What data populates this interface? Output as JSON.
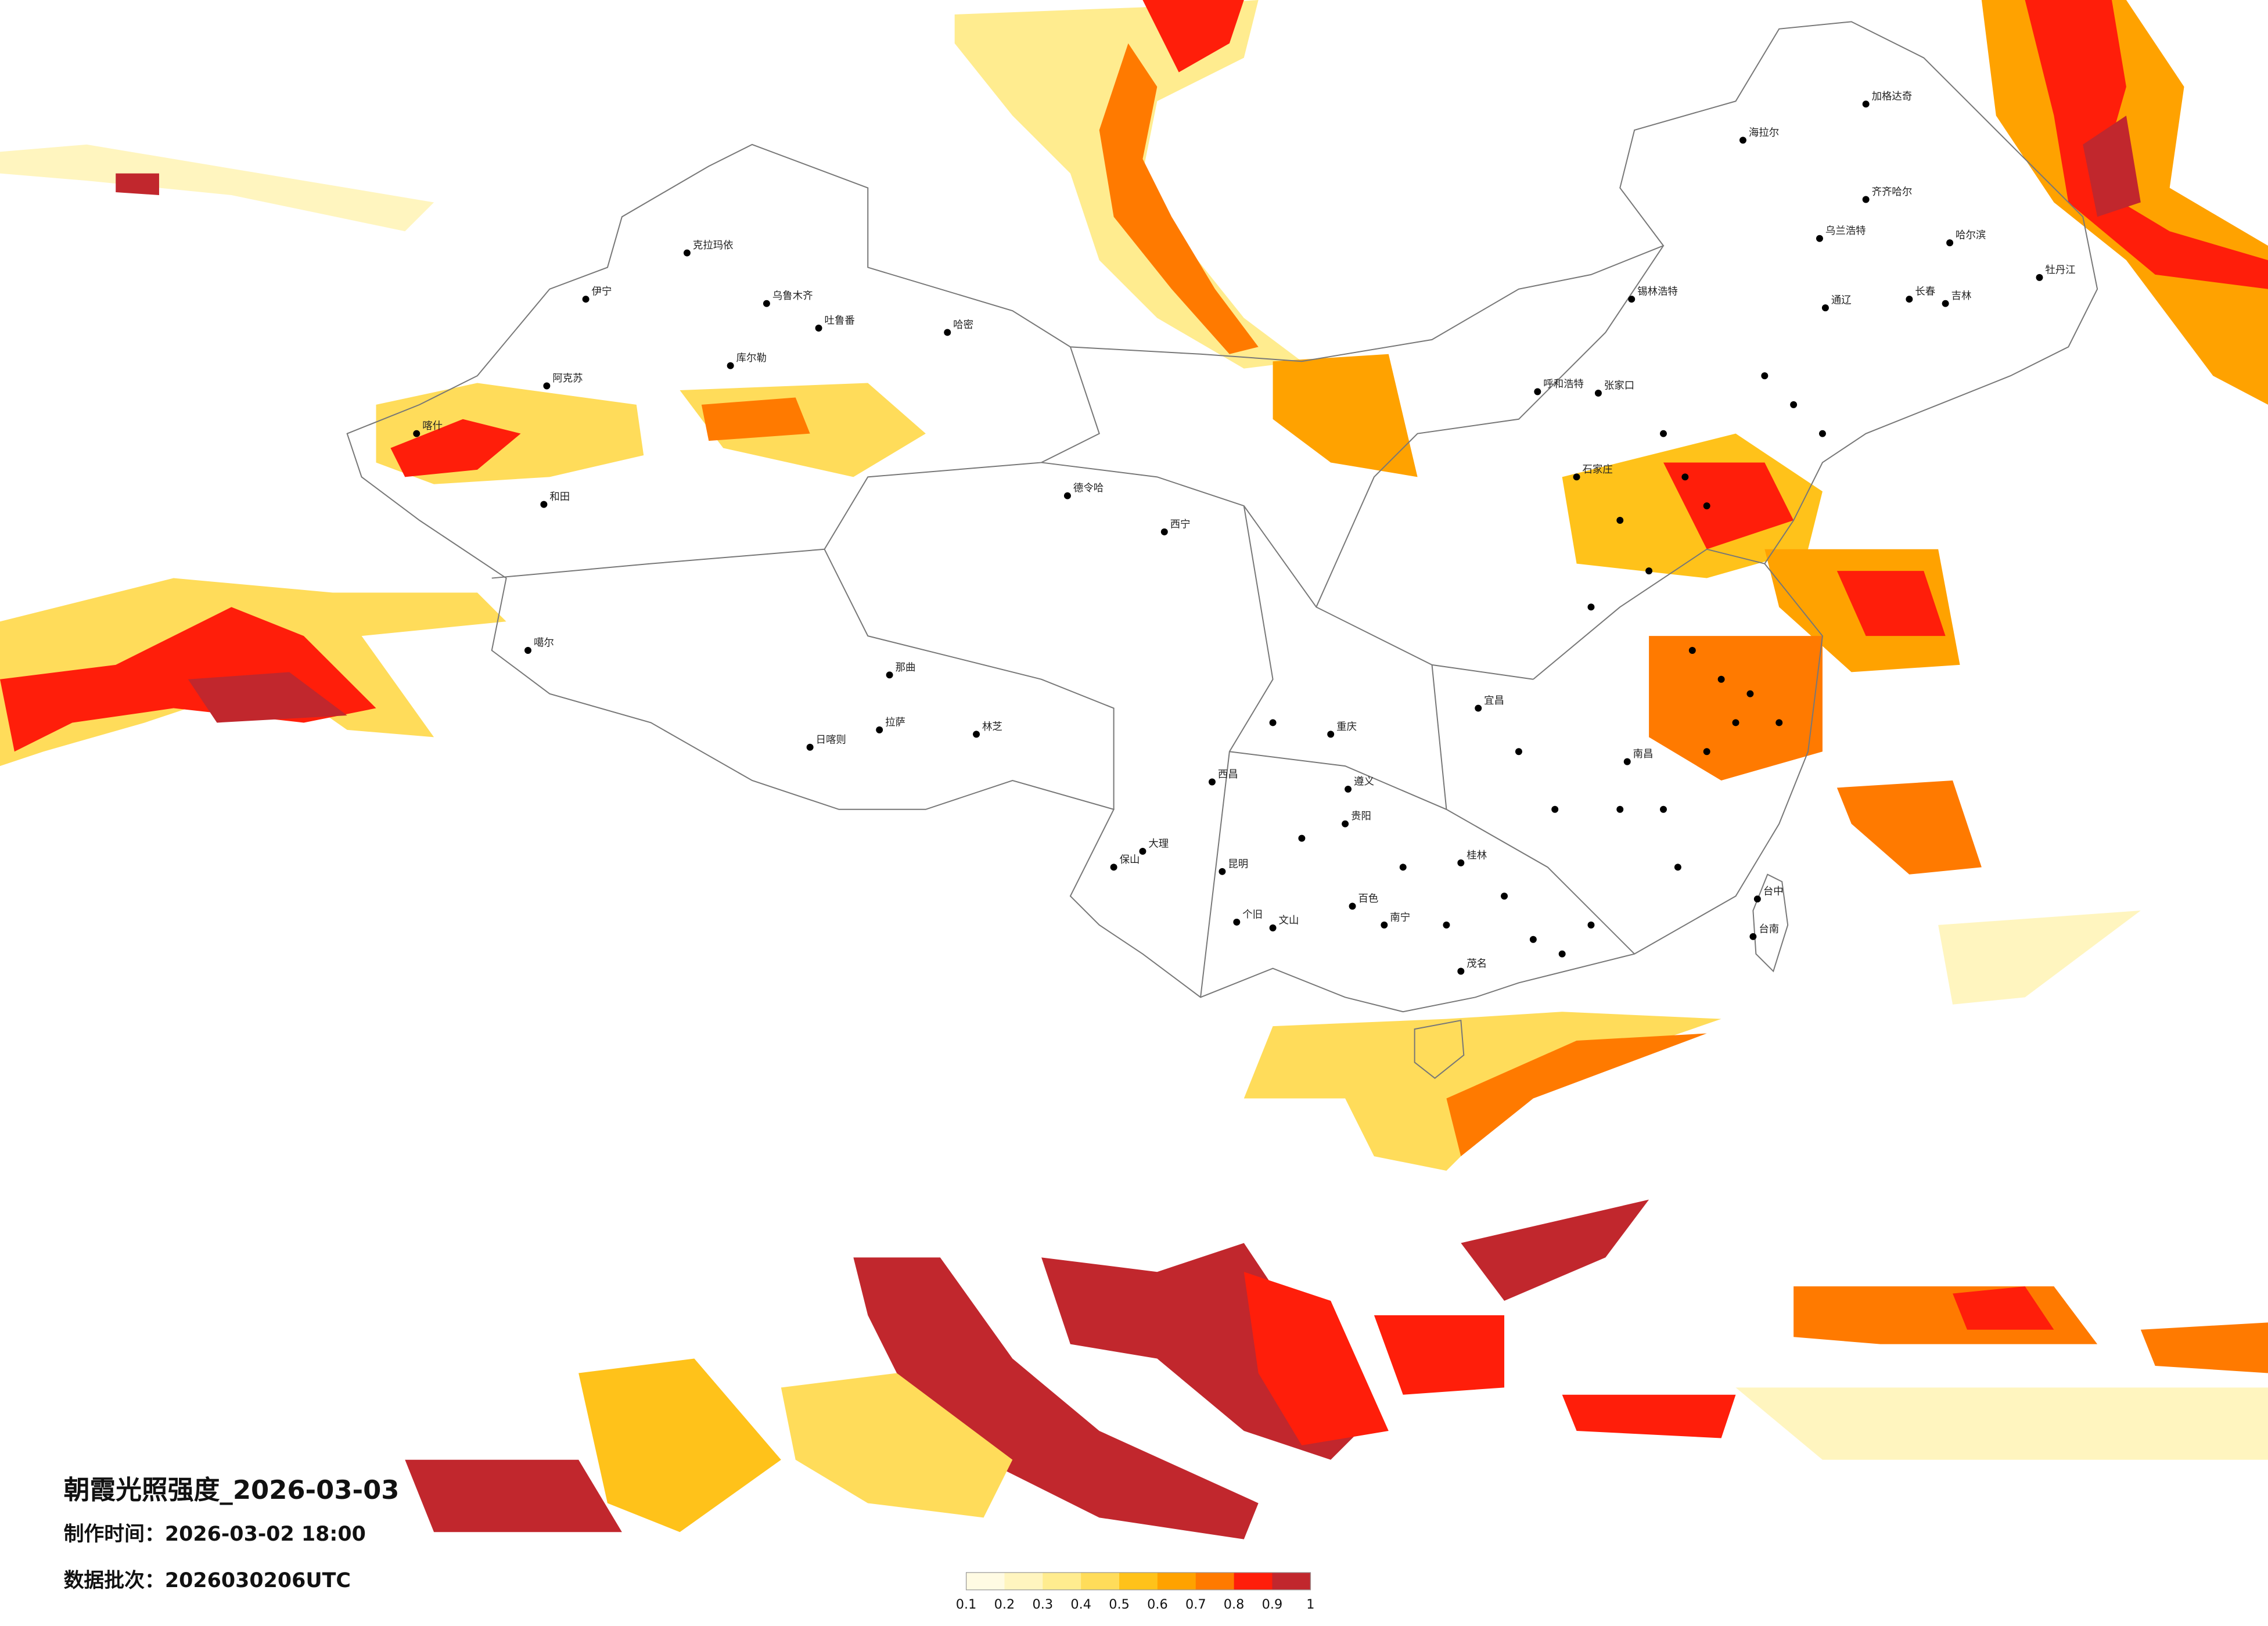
{
  "header": {
    "title": "朝霞光照强度_2026-03-03",
    "made_time": "制作时间：2026-03-02 18:00",
    "batch": "数据批次：2026030206UTC"
  },
  "legend": {
    "ticks": [
      0.1,
      0.2,
      0.3,
      0.4,
      0.5,
      0.6,
      0.7,
      0.8,
      0.9,
      1
    ],
    "colors": [
      "#fffbe3",
      "#fff5bf",
      "#ffec8f",
      "#ffdc5a",
      "#ffc21a",
      "#ffa200",
      "#ff7a00",
      "#ff1e0a",
      "#c1272d"
    ]
  },
  "cities": [
    "克拉玛依",
    "伊宁",
    "乌鲁木齐",
    "吐鲁番",
    "哈密",
    "库尔勒",
    "阿克苏",
    "喀什",
    "和田",
    "噶尔",
    "日喀则",
    "拉萨",
    "那曲",
    "林芝",
    "德令哈",
    "西宁",
    "呼和浩特",
    "锡林浩特",
    "海拉尔",
    "加格达奇",
    "齐齐哈尔",
    "哈尔滨",
    "乌兰浩特",
    "长春",
    "吉林",
    "牡丹江",
    "通辽",
    "张家口",
    "石家庄",
    "重庆",
    "遵义",
    "贵阳",
    "昆明",
    "大理",
    "保山",
    "西昌",
    "个旧",
    "文山",
    "百色",
    "南宁",
    "桂林",
    "宜昌",
    "南昌",
    "茂名",
    "台中",
    "台南"
  ]
}
